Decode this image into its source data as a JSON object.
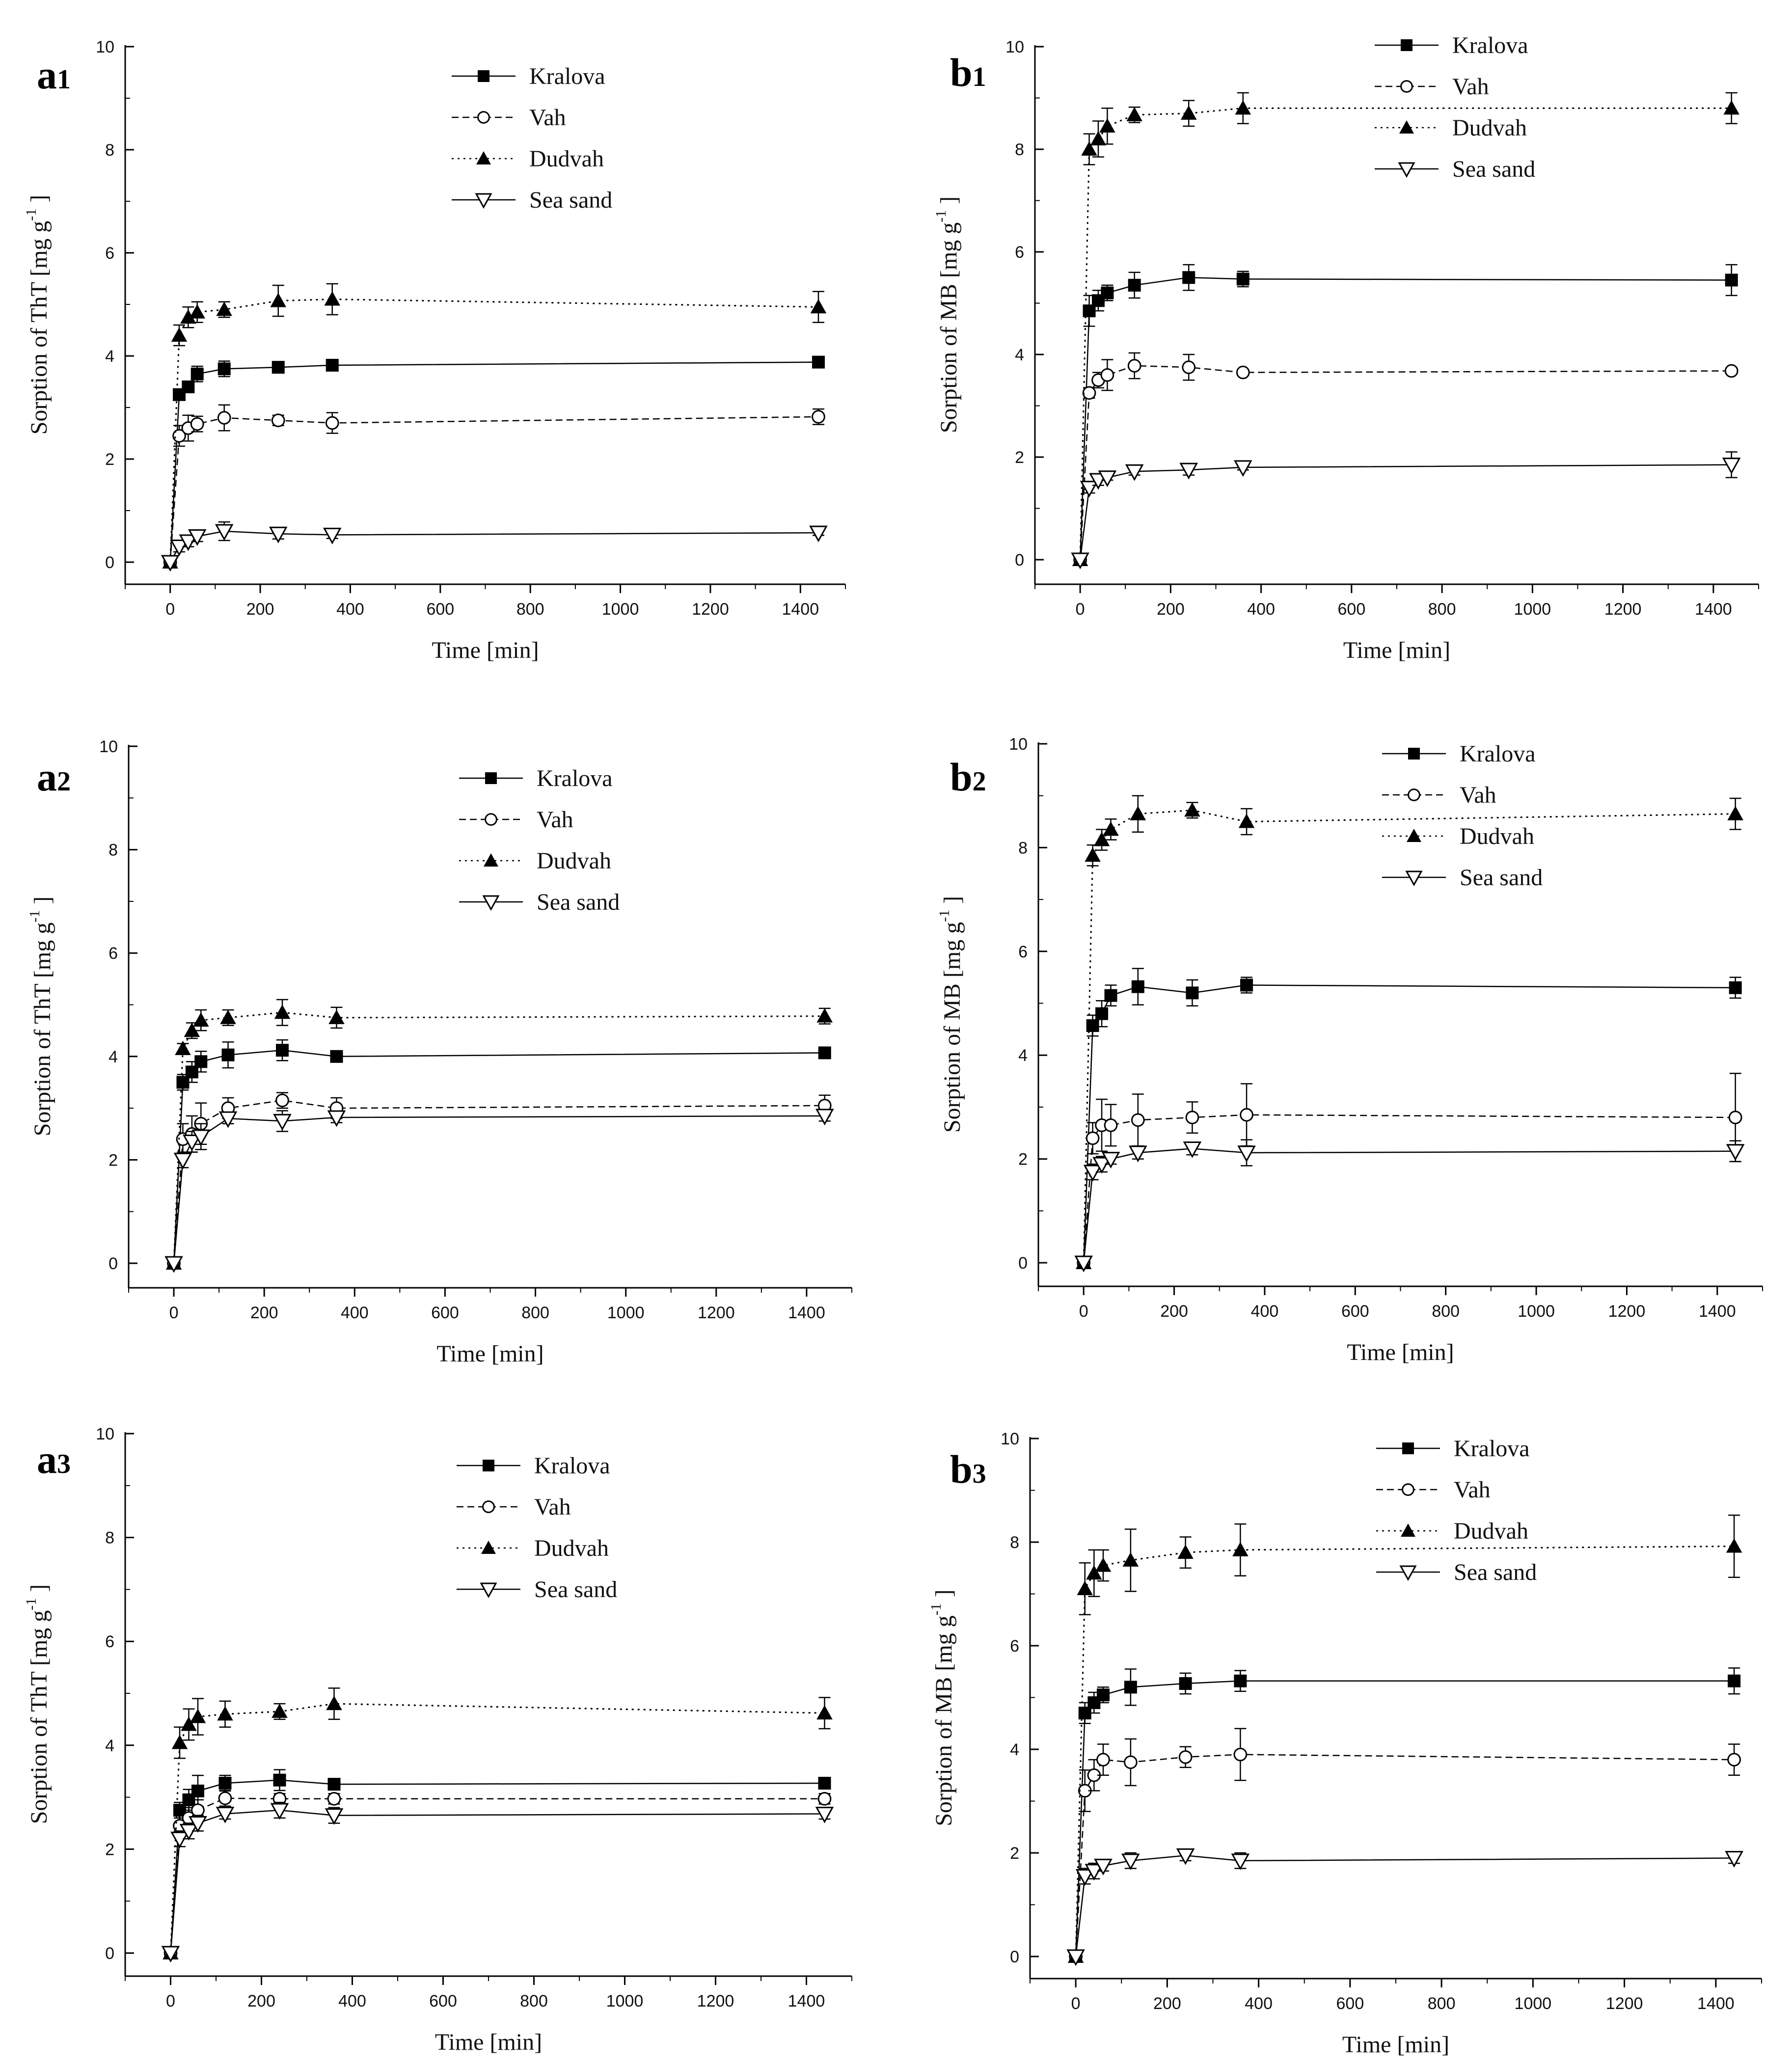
{
  "chart_data": [
    {
      "id": "a1",
      "type": "line",
      "panel_label": "a",
      "panel_index": "1",
      "xlabel": "Time [min]",
      "ylabel": "Sorption of ThT [mg g",
      "ylabel_exp": "-1",
      "ylabel_end": "]",
      "xlim": [
        -100,
        1500
      ],
      "ylim": [
        0,
        10
      ],
      "xticks": [
        "0",
        "200",
        "400",
        "600",
        "800",
        "1000",
        "1200",
        "1400"
      ],
      "yticks": [
        "0",
        "2",
        "4",
        "6",
        "8",
        "10"
      ],
      "x": [
        0,
        20,
        40,
        60,
        120,
        240,
        360,
        1440
      ],
      "series": [
        {
          "name": "Kralova",
          "values": [
            0,
            3.25,
            3.4,
            3.65,
            3.75,
            3.78,
            3.82,
            3.88
          ],
          "err": [
            0,
            0.1,
            0.1,
            0.15,
            0.15,
            0.08,
            0.05,
            0.05
          ]
        },
        {
          "name": "Vah",
          "values": [
            0,
            2.45,
            2.6,
            2.68,
            2.8,
            2.75,
            2.7,
            2.82
          ],
          "err": [
            0,
            0.2,
            0.25,
            0.15,
            0.25,
            0.1,
            0.2,
            0.15
          ]
        },
        {
          "name": "Dudvah",
          "values": [
            0,
            4.4,
            4.75,
            4.85,
            4.9,
            5.07,
            5.1,
            4.95
          ],
          "err": [
            0,
            0.2,
            0.2,
            0.2,
            0.15,
            0.3,
            0.3,
            0.3
          ]
        },
        {
          "name": "Sea sand",
          "values": [
            0,
            0.3,
            0.4,
            0.5,
            0.6,
            0.55,
            0.53,
            0.57
          ],
          "err": [
            0,
            0.1,
            0.1,
            0.1,
            0.18,
            0.1,
            0.07,
            0.05
          ]
        }
      ]
    },
    {
      "id": "b1",
      "type": "line",
      "panel_label": "b",
      "panel_index": "1",
      "xlabel": "Time [min]",
      "ylabel": "Sorption of MB [mg g",
      "ylabel_exp": "-1",
      "ylabel_end": "]",
      "xlim": [
        -100,
        1500
      ],
      "ylim": [
        0,
        10
      ],
      "xticks": [
        "0",
        "200",
        "400",
        "600",
        "800",
        "1000",
        "1200",
        "1400"
      ],
      "yticks": [
        "0",
        "2",
        "4",
        "6",
        "8",
        "10"
      ],
      "x": [
        0,
        20,
        40,
        60,
        120,
        240,
        360,
        1440
      ],
      "series": [
        {
          "name": "Kralova",
          "values": [
            0,
            4.85,
            5.05,
            5.2,
            5.35,
            5.5,
            5.47,
            5.45
          ],
          "err": [
            0,
            0.3,
            0.2,
            0.15,
            0.25,
            0.25,
            0.15,
            0.3
          ]
        },
        {
          "name": "Vah",
          "values": [
            0,
            3.25,
            3.5,
            3.6,
            3.78,
            3.75,
            3.65,
            3.68
          ],
          "err": [
            0,
            0.1,
            0.15,
            0.3,
            0.25,
            0.25,
            0.05,
            0.05
          ]
        },
        {
          "name": "Dudvah",
          "values": [
            0,
            8.0,
            8.2,
            8.45,
            8.67,
            8.7,
            8.8,
            8.8
          ],
          "err": [
            0,
            0.3,
            0.35,
            0.35,
            0.15,
            0.25,
            0.3,
            0.3
          ]
        },
        {
          "name": "Sea sand",
          "values": [
            0,
            1.4,
            1.55,
            1.6,
            1.72,
            1.75,
            1.8,
            1.85
          ],
          "err": [
            0,
            0.1,
            0.1,
            0.05,
            0.07,
            0.1,
            0.05,
            0.25
          ]
        }
      ]
    },
    {
      "id": "a2",
      "type": "line",
      "panel_label": "a",
      "panel_index": "2",
      "xlabel": "Time [min]",
      "ylabel": "Sorption of ThT [mg g",
      "ylabel_exp": "-1",
      "ylabel_end": "]",
      "xlim": [
        -100,
        1500
      ],
      "ylim": [
        0,
        10
      ],
      "xticks": [
        "0",
        "200",
        "400",
        "600",
        "800",
        "1000",
        "1200",
        "1400"
      ],
      "yticks": [
        "0",
        "2",
        "4",
        "6",
        "8",
        "10"
      ],
      "x": [
        0,
        20,
        40,
        60,
        120,
        240,
        360,
        1440
      ],
      "series": [
        {
          "name": "Kralova",
          "values": [
            0,
            3.5,
            3.7,
            3.9,
            4.03,
            4.12,
            4.0,
            4.07
          ],
          "err": [
            0,
            0.15,
            0.2,
            0.2,
            0.25,
            0.2,
            0.05,
            0.05
          ]
        },
        {
          "name": "Vah",
          "values": [
            0,
            2.4,
            2.5,
            2.7,
            3.0,
            3.15,
            3.0,
            3.05
          ],
          "err": [
            0,
            0.3,
            0.35,
            0.4,
            0.2,
            0.15,
            0.2,
            0.2
          ]
        },
        {
          "name": "Dudvah",
          "values": [
            0,
            4.15,
            4.5,
            4.7,
            4.75,
            4.85,
            4.75,
            4.78
          ],
          "err": [
            0,
            0.1,
            0.15,
            0.2,
            0.15,
            0.25,
            0.2,
            0.15
          ]
        },
        {
          "name": "Sea sand",
          "values": [
            0,
            2.0,
            2.35,
            2.45,
            2.8,
            2.75,
            2.82,
            2.85
          ],
          "err": [
            0,
            0.15,
            0.2,
            0.25,
            0.1,
            0.2,
            0.1,
            0.1
          ]
        }
      ]
    },
    {
      "id": "b2",
      "type": "line",
      "panel_label": "b",
      "panel_index": "2",
      "xlabel": "Time [min]",
      "ylabel": "Sorption of MB [mg g",
      "ylabel_exp": "-1",
      "ylabel_end": "]",
      "xlim": [
        -100,
        1500
      ],
      "ylim": [
        0,
        10
      ],
      "xticks": [
        "0",
        "200",
        "400",
        "600",
        "800",
        "1000",
        "1200",
        "1400"
      ],
      "yticks": [
        "0",
        "2",
        "4",
        "6",
        "8",
        "10"
      ],
      "x": [
        0,
        20,
        40,
        60,
        120,
        240,
        360,
        1440
      ],
      "series": [
        {
          "name": "Kralova",
          "values": [
            0,
            4.57,
            4.8,
            5.15,
            5.32,
            5.2,
            5.35,
            5.3
          ],
          "err": [
            0,
            0.2,
            0.25,
            0.2,
            0.35,
            0.25,
            0.15,
            0.2
          ]
        },
        {
          "name": "Vah",
          "values": [
            0,
            2.4,
            2.65,
            2.65,
            2.75,
            2.8,
            2.85,
            2.8
          ],
          "err": [
            0,
            0.3,
            0.5,
            0.4,
            0.5,
            0.3,
            0.6,
            0.85
          ]
        },
        {
          "name": "Dudvah",
          "values": [
            0,
            7.85,
            8.15,
            8.35,
            8.65,
            8.72,
            8.5,
            8.65
          ],
          "err": [
            0,
            0.2,
            0.2,
            0.2,
            0.35,
            0.15,
            0.25,
            0.3
          ]
        },
        {
          "name": "Sea sand",
          "values": [
            0,
            1.75,
            1.9,
            2.0,
            2.12,
            2.2,
            2.12,
            2.15
          ],
          "err": [
            0,
            0.15,
            0.15,
            0.1,
            0.12,
            0.12,
            0.25,
            0.2
          ]
        }
      ]
    },
    {
      "id": "a3",
      "type": "line",
      "panel_label": "a",
      "panel_index": "3",
      "xlabel": "Time [min]",
      "ylabel": "Sorption of ThT [mg g",
      "ylabel_exp": "-1",
      "ylabel_end": "]",
      "xlim": [
        -100,
        1500
      ],
      "ylim": [
        0,
        10
      ],
      "xticks": [
        "0",
        "200",
        "400",
        "600",
        "800",
        "1000",
        "1200",
        "1400"
      ],
      "yticks": [
        "0",
        "2",
        "4",
        "6",
        "8",
        "10"
      ],
      "x": [
        0,
        20,
        40,
        60,
        120,
        240,
        360,
        1440
      ],
      "series": [
        {
          "name": "Kralova",
          "values": [
            0,
            2.75,
            2.95,
            3.12,
            3.27,
            3.33,
            3.25,
            3.27
          ],
          "err": [
            0,
            0.15,
            0.2,
            0.3,
            0.15,
            0.2,
            0.05,
            0.05
          ]
        },
        {
          "name": "Vah",
          "values": [
            0,
            2.45,
            2.6,
            2.75,
            2.98,
            2.97,
            2.97,
            2.97
          ],
          "err": [
            0,
            0.2,
            0.2,
            0.2,
            0.15,
            0.1,
            0.1,
            0.1
          ]
        },
        {
          "name": "Dudvah",
          "values": [
            0,
            4.05,
            4.4,
            4.55,
            4.6,
            4.65,
            4.8,
            4.62
          ],
          "err": [
            0,
            0.3,
            0.3,
            0.35,
            0.25,
            0.15,
            0.3,
            0.3
          ]
        },
        {
          "name": "Sea sand",
          "values": [
            0,
            2.2,
            2.35,
            2.5,
            2.68,
            2.75,
            2.65,
            2.68
          ],
          "err": [
            0,
            0.15,
            0.15,
            0.15,
            0.1,
            0.15,
            0.15,
            0.1
          ]
        }
      ]
    },
    {
      "id": "b3",
      "type": "line",
      "panel_label": "b",
      "panel_index": "3",
      "xlabel": "Time [min]",
      "ylabel": "Sorption of MB [mg g",
      "ylabel_exp": "-1",
      "ylabel_end": "]",
      "xlim": [
        -100,
        1500
      ],
      "ylim": [
        0,
        10
      ],
      "xticks": [
        "0",
        "200",
        "400",
        "600",
        "800",
        "1000",
        "1200",
        "1400"
      ],
      "yticks": [
        "0",
        "2",
        "4",
        "6",
        "8",
        "10"
      ],
      "x": [
        0,
        20,
        40,
        60,
        120,
        240,
        360,
        1440
      ],
      "series": [
        {
          "name": "Kralova",
          "values": [
            0,
            4.7,
            4.9,
            5.05,
            5.2,
            5.27,
            5.32,
            5.32
          ],
          "err": [
            0,
            0.2,
            0.2,
            0.15,
            0.35,
            0.2,
            0.2,
            0.25
          ]
        },
        {
          "name": "Vah",
          "values": [
            0,
            3.2,
            3.5,
            3.8,
            3.75,
            3.85,
            3.9,
            3.8
          ],
          "err": [
            0,
            0.4,
            0.3,
            0.3,
            0.45,
            0.2,
            0.5,
            0.3
          ]
        },
        {
          "name": "Dudvah",
          "values": [
            0,
            7.1,
            7.4,
            7.55,
            7.65,
            7.8,
            7.85,
            7.92
          ],
          "err": [
            0,
            0.5,
            0.45,
            0.3,
            0.6,
            0.3,
            0.5,
            0.6
          ]
        },
        {
          "name": "Sea sand",
          "values": [
            0,
            1.55,
            1.65,
            1.75,
            1.85,
            1.95,
            1.85,
            1.9
          ],
          "err": [
            0,
            0.15,
            0.15,
            0.1,
            0.15,
            0.1,
            0.15,
            0.1
          ]
        }
      ]
    }
  ]
}
